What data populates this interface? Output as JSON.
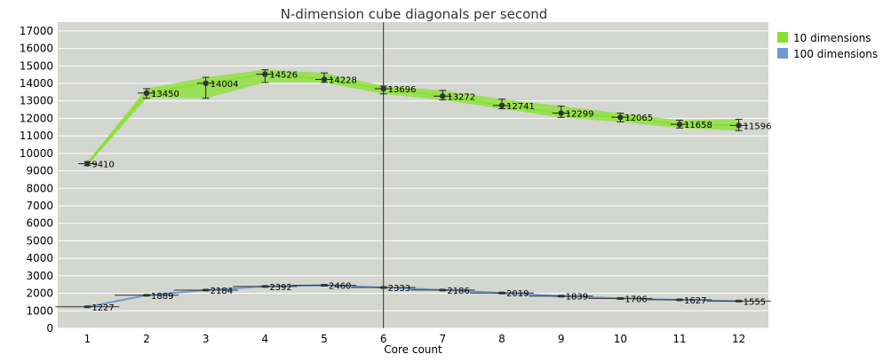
{
  "chart_data": {
    "type": "line",
    "title": "N-dimension cube diagonals per second",
    "xlabel": "Core count",
    "ylabel": "",
    "categories": [
      "1",
      "2",
      "3",
      "4",
      "5",
      "6",
      "7",
      "8",
      "9",
      "10",
      "11",
      "12"
    ],
    "ylim": [
      0,
      17500
    ],
    "yticks": [
      0,
      1000,
      2000,
      3000,
      4000,
      5000,
      6000,
      7000,
      8000,
      9000,
      10000,
      11000,
      12000,
      13000,
      14000,
      15000,
      16000,
      17000
    ],
    "grid": true,
    "legend_position": "right",
    "marker_line_at": "6",
    "series": [
      {
        "name": "10 dimensions",
        "color": "#88e030",
        "values": [
          9410,
          13450,
          14004,
          14526,
          14228,
          13696,
          13272,
          12741,
          12299,
          12065,
          11658,
          11596
        ],
        "band_low": [
          9300,
          13150,
          13150,
          14050,
          14050,
          13400,
          13050,
          12550,
          12050,
          11800,
          11450,
          11300
        ],
        "band_high": [
          9520,
          13700,
          14350,
          14780,
          14600,
          13850,
          13600,
          13100,
          12700,
          12300,
          11900,
          11950
        ]
      },
      {
        "name": "100 dimensions",
        "color": "#6f9bd0",
        "values": [
          1227,
          1889,
          2184,
          2392,
          2460,
          2333,
          2186,
          2019,
          1839,
          1706,
          1627,
          1555
        ],
        "band_low": [
          1200,
          1860,
          2150,
          2360,
          2420,
          2300,
          2150,
          1980,
          1800,
          1670,
          1600,
          1530
        ],
        "band_high": [
          1250,
          1910,
          2210,
          2420,
          2490,
          2360,
          2210,
          2050,
          1870,
          1740,
          1650,
          1580
        ]
      }
    ]
  }
}
